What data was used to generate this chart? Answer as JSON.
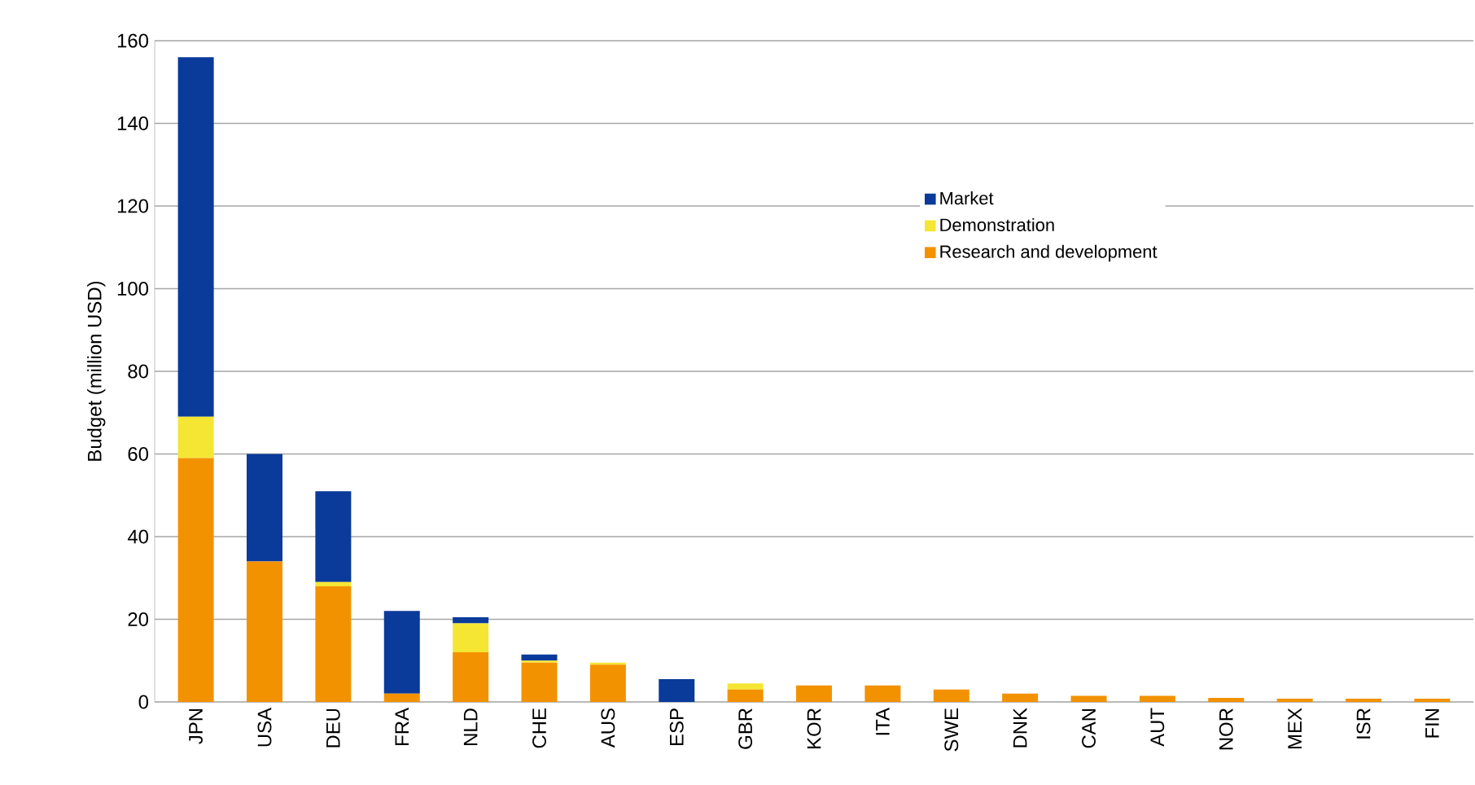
{
  "chart_data": {
    "type": "bar",
    "stacked": true,
    "ylabel": "Budget (million USD)",
    "categories": [
      "JPN",
      "USA",
      "DEU",
      "FRA",
      "NLD",
      "CHE",
      "AUS",
      "ESP",
      "GBR",
      "KOR",
      "ITA",
      "SWE",
      "DNK",
      "CAN",
      "AUT",
      "NOR",
      "MEX",
      "ISR",
      "FIN"
    ],
    "series": [
      {
        "name": "Research and development",
        "color": "#f39200",
        "values": [
          59,
          34,
          28,
          2,
          12,
          9.5,
          9,
          0,
          3,
          4,
          4,
          3,
          2,
          1.5,
          1.5,
          1,
          0.8,
          0.8,
          0.8
        ]
      },
      {
        "name": "Demonstration",
        "color": "#f5e633",
        "values": [
          10,
          0,
          1,
          0,
          7,
          0.5,
          0.5,
          0,
          1.5,
          0,
          0,
          0,
          0,
          0,
          0,
          0,
          0,
          0,
          0
        ]
      },
      {
        "name": "Market",
        "color": "#0a3a9a",
        "values": [
          87,
          26,
          22,
          20,
          1.5,
          1.5,
          0,
          5.5,
          0,
          0,
          0,
          0,
          0,
          0,
          0,
          0,
          0,
          0,
          0
        ]
      }
    ],
    "ylim": [
      0,
      160
    ],
    "yticks": [
      0,
      20,
      40,
      60,
      80,
      100,
      120,
      140,
      160
    ],
    "grid": "y",
    "legend": "right"
  }
}
